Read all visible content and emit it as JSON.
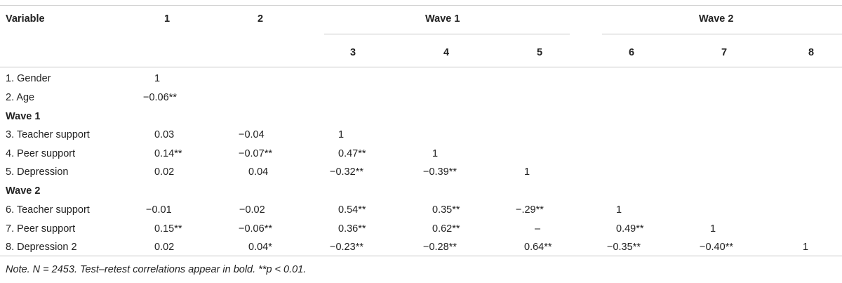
{
  "header": {
    "variable": "Variable",
    "col1": "1",
    "col2": "2",
    "wave1": "Wave 1",
    "wave2": "Wave 2",
    "col3": "3",
    "col4": "4",
    "col5": "5",
    "col6": "6",
    "col7": "7",
    "col8": "8"
  },
  "groups": {
    "wave1": "Wave 1",
    "wave2": "Wave 2"
  },
  "rows": [
    {
      "label": "1. Gender",
      "c1": "1",
      "c2": "",
      "c3": "",
      "c4": "",
      "c5": "",
      "c6": "",
      "c7": "",
      "c8": ""
    },
    {
      "label": "2. Age",
      "c1": "−0.06**",
      "c2": "",
      "c3": "",
      "c4": "",
      "c5": "",
      "c6": "",
      "c7": "",
      "c8": ""
    },
    {
      "label": "3. Teacher support",
      "c1": "0.03",
      "c2": "−0.04",
      "c3": "1",
      "c4": "",
      "c5": "",
      "c6": "",
      "c7": "",
      "c8": ""
    },
    {
      "label": "4. Peer support",
      "c1": "0.14**",
      "c2": "−0.07**",
      "c3": "0.47**",
      "c4": "1",
      "c5": "",
      "c6": "",
      "c7": "",
      "c8": ""
    },
    {
      "label": "5. Depression",
      "c1": "0.02",
      "c2": "0.04",
      "c3": "−0.32**",
      "c4": "−0.39**",
      "c5": "1",
      "c6": "",
      "c7": "",
      "c8": ""
    },
    {
      "label": "6. Teacher support",
      "c1": "−0.01",
      "c2": "−0.02",
      "c3": "0.54**",
      "c4": "0.35**",
      "c5": "−.29**",
      "c6": "1",
      "c7": "",
      "c8": ""
    },
    {
      "label": "7. Peer support",
      "c1": "0.15**",
      "c2": "−0.06**",
      "c3": "0.36**",
      "c4": "0.62**",
      "c5": "–",
      "c6": "0.49**",
      "c7": "1",
      "c8": ""
    },
    {
      "label": "8. Depression 2",
      "c1": "0.02",
      "c2": "0.04*",
      "c3": "−0.23**",
      "c4": "−0.28**",
      "c5": "0.64**",
      "c6": "−0.35**",
      "c7": "−0.40**",
      "c8": "1"
    }
  ],
  "note": "Note. N = 2453. Test–retest correlations appear in bold. **p < 0.01."
}
